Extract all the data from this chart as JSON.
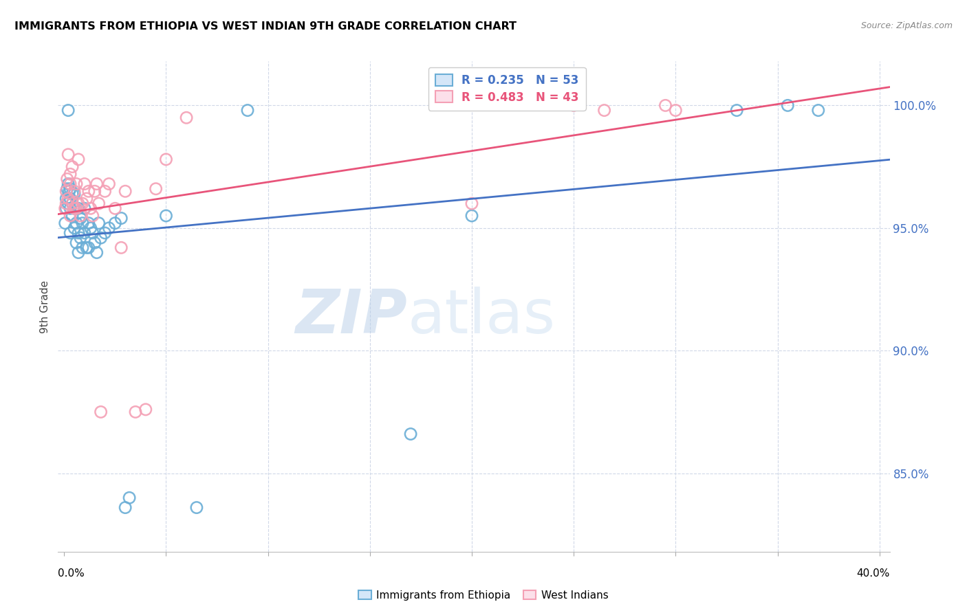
{
  "title": "IMMIGRANTS FROM ETHIOPIA VS WEST INDIAN 9TH GRADE CORRELATION CHART",
  "source_text": "Source: ZipAtlas.com",
  "ylabel": "9th Grade",
  "yticks": [
    "85.0%",
    "90.0%",
    "95.0%",
    "100.0%"
  ],
  "ytick_vals": [
    0.85,
    0.9,
    0.95,
    1.0
  ],
  "ymin": 0.818,
  "ymax": 1.018,
  "xmin": -0.003,
  "xmax": 0.405,
  "legend_line1": "R = 0.235   N = 53",
  "legend_line2": "R = 0.483   N = 43",
  "watermark_zip": "ZIP",
  "watermark_atlas": "atlas",
  "blue_color": "#6baed6",
  "pink_color": "#f4a0b5",
  "blue_line_color": "#4472C4",
  "pink_line_color": "#e8547a",
  "tick_color": "#4472C4",
  "grid_color": "#d0d8e8",
  "ethiopia_x": [
    0.0005,
    0.001,
    0.001,
    0.0015,
    0.002,
    0.002,
    0.002,
    0.0025,
    0.003,
    0.003,
    0.003,
    0.003,
    0.004,
    0.004,
    0.004,
    0.005,
    0.005,
    0.005,
    0.006,
    0.006,
    0.006,
    0.007,
    0.007,
    0.007,
    0.008,
    0.008,
    0.009,
    0.009,
    0.01,
    0.01,
    0.011,
    0.012,
    0.012,
    0.013,
    0.014,
    0.015,
    0.016,
    0.017,
    0.018,
    0.02,
    0.022,
    0.025,
    0.028,
    0.03,
    0.032,
    0.05,
    0.065,
    0.09,
    0.17,
    0.2,
    0.33,
    0.355,
    0.37
  ],
  "ethiopia_y": [
    0.952,
    0.958,
    0.962,
    0.966,
    0.96,
    0.968,
    0.998,
    0.965,
    0.958,
    0.962,
    0.966,
    0.948,
    0.955,
    0.96,
    0.964,
    0.958,
    0.964,
    0.95,
    0.952,
    0.958,
    0.944,
    0.958,
    0.948,
    0.94,
    0.954,
    0.946,
    0.942,
    0.952,
    0.948,
    0.958,
    0.942,
    0.952,
    0.942,
    0.95,
    0.948,
    0.944,
    0.94,
    0.952,
    0.946,
    0.948,
    0.95,
    0.952,
    0.954,
    0.836,
    0.84,
    0.955,
    0.836,
    0.998,
    0.866,
    0.955,
    0.998,
    1.0,
    0.998
  ],
  "westindian_x": [
    0.0005,
    0.001,
    0.001,
    0.0015,
    0.002,
    0.002,
    0.003,
    0.003,
    0.003,
    0.004,
    0.004,
    0.005,
    0.005,
    0.006,
    0.006,
    0.007,
    0.007,
    0.008,
    0.009,
    0.01,
    0.011,
    0.012,
    0.013,
    0.014,
    0.015,
    0.016,
    0.017,
    0.018,
    0.02,
    0.022,
    0.025,
    0.028,
    0.03,
    0.035,
    0.04,
    0.045,
    0.05,
    0.06,
    0.2,
    0.25,
    0.265,
    0.295,
    0.3
  ],
  "westindian_y": [
    0.958,
    0.96,
    0.965,
    0.97,
    0.962,
    0.98,
    0.968,
    0.972,
    0.955,
    0.96,
    0.975,
    0.958,
    0.965,
    0.958,
    0.968,
    0.96,
    0.978,
    0.955,
    0.96,
    0.968,
    0.962,
    0.965,
    0.958,
    0.955,
    0.965,
    0.968,
    0.96,
    0.875,
    0.965,
    0.968,
    0.958,
    0.942,
    0.965,
    0.875,
    0.876,
    0.966,
    0.978,
    0.995,
    0.96,
    1.0,
    0.998,
    1.0,
    0.998
  ]
}
